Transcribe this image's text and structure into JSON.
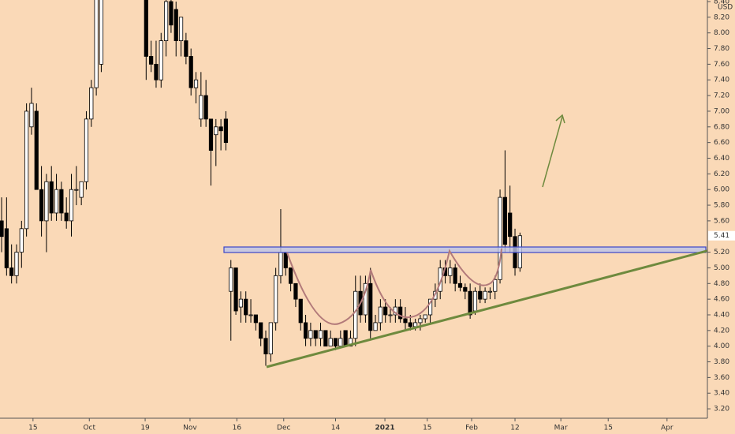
{
  "chart_data": {
    "type": "candlestick",
    "currency": "USD",
    "last_price": 5.41,
    "up_color": "#ffffff",
    "down_color": "#000000",
    "x": [
      0,
      1,
      2,
      3,
      4,
      5,
      6,
      7,
      8,
      9,
      10,
      11,
      12,
      13,
      14,
      15,
      16,
      17,
      18,
      19,
      20,
      21,
      22,
      23,
      24,
      25,
      26,
      27,
      28,
      29,
      30,
      31,
      32,
      33,
      34,
      35,
      36,
      37,
      38,
      39,
      40,
      41,
      42,
      43,
      44,
      45,
      46,
      47,
      48,
      49,
      50,
      51,
      52,
      53,
      54,
      55,
      56,
      57,
      58,
      59,
      60,
      61,
      62,
      63,
      64,
      65,
      66,
      67,
      68,
      69,
      70,
      71,
      72,
      73,
      74,
      75,
      76,
      77,
      78,
      79,
      80,
      81,
      82,
      83,
      84,
      85,
      86,
      87,
      88,
      89,
      90,
      91,
      92,
      93,
      94,
      95,
      96,
      97,
      98,
      99,
      100,
      101,
      102,
      103,
      104
    ],
    "open": [
      5.6,
      5.5,
      5.0,
      4.9,
      5.2,
      5.5,
      6.8,
      7.0,
      6.0,
      5.6,
      6.1,
      5.7,
      6.0,
      5.7,
      5.6,
      6.0,
      5.9,
      6.1,
      6.9,
      7.3,
      7.6,
      null,
      null,
      null,
      null,
      null,
      null,
      null,
      null,
      8.5,
      7.7,
      7.6,
      7.4,
      7.9,
      8.4,
      8.3,
      7.9,
      7.9,
      7.7,
      7.3,
      6.9,
      7.2,
      6.9,
      6.7,
      6.8,
      6.9,
      4.7,
      5.0,
      4.5,
      4.6,
      4.4,
      4.4,
      4.3,
      4.1,
      3.9,
      4.3,
      4.9,
      5.2,
      5.0,
      4.8,
      4.6,
      4.3,
      4.1,
      4.2,
      4.1,
      4.2,
      4.0,
      4.1,
      4.0,
      4.2,
      4.0,
      4.1,
      4.7,
      4.4,
      4.8,
      4.2,
      4.3,
      4.5,
      4.4,
      4.4,
      4.5,
      4.35,
      4.3,
      4.25,
      4.3,
      4.35,
      4.4,
      4.6,
      4.7,
      5.0,
      4.9,
      5.0,
      4.8,
      4.75,
      4.7,
      4.45,
      4.7,
      4.6,
      4.7,
      4.7,
      4.85,
      5.9,
      5.7,
      5.4,
      5.0
    ],
    "high": [
      5.9,
      5.9,
      5.3,
      5.3,
      5.6,
      7.1,
      7.3,
      7.1,
      6.3,
      6.2,
      6.3,
      6.2,
      6.1,
      5.9,
      6.2,
      6.3,
      6.1,
      7.0,
      7.4,
      8.5,
      8.5,
      null,
      null,
      null,
      null,
      null,
      null,
      null,
      null,
      8.5,
      7.9,
      7.9,
      8.0,
      8.5,
      8.5,
      8.4,
      8.2,
      8.0,
      7.8,
      7.5,
      7.5,
      7.4,
      6.9,
      6.9,
      6.9,
      7.0,
      5.1,
      5.0,
      4.7,
      4.7,
      4.6,
      4.4,
      4.3,
      4.2,
      4.3,
      5.0,
      5.75,
      5.2,
      5.0,
      4.8,
      4.6,
      4.4,
      4.3,
      4.2,
      4.3,
      4.2,
      4.2,
      4.1,
      4.2,
      4.2,
      4.2,
      4.9,
      4.9,
      4.9,
      5.0,
      4.4,
      4.6,
      4.6,
      4.5,
      4.6,
      4.6,
      4.5,
      4.4,
      4.35,
      4.4,
      4.4,
      4.6,
      4.8,
      5.1,
      5.1,
      5.1,
      5.05,
      4.9,
      4.8,
      4.8,
      4.75,
      4.8,
      4.75,
      4.75,
      4.9,
      6.0,
      6.5,
      6.05,
      5.5,
      5.45
    ],
    "low": [
      5.2,
      4.9,
      4.8,
      4.8,
      5.0,
      5.4,
      6.7,
      6.0,
      5.4,
      5.2,
      5.6,
      5.6,
      5.6,
      5.5,
      5.4,
      5.8,
      5.8,
      6.0,
      6.8,
      7.2,
      7.5,
      null,
      null,
      null,
      null,
      null,
      null,
      null,
      null,
      7.4,
      7.5,
      7.3,
      7.3,
      7.7,
      8.0,
      7.7,
      7.7,
      7.6,
      7.2,
      7.1,
      6.8,
      6.8,
      6.05,
      6.3,
      6.5,
      6.5,
      4.07,
      4.4,
      4.3,
      4.3,
      4.3,
      4.2,
      4.0,
      3.75,
      3.8,
      4.2,
      4.8,
      4.9,
      4.7,
      4.5,
      4.2,
      4.0,
      4.0,
      4.0,
      4.0,
      4.0,
      4.0,
      3.95,
      4.0,
      4.0,
      4.0,
      4.0,
      4.3,
      4.3,
      4.1,
      4.2,
      4.2,
      4.3,
      4.3,
      4.3,
      4.3,
      4.2,
      4.2,
      4.2,
      4.2,
      4.3,
      4.3,
      4.5,
      4.6,
      4.8,
      4.8,
      4.7,
      4.7,
      4.6,
      4.35,
      4.4,
      4.55,
      4.55,
      4.6,
      4.6,
      4.8,
      5.2,
      5.2,
      4.9,
      4.95
    ],
    "close": [
      5.4,
      5.0,
      4.9,
      5.2,
      5.5,
      7.0,
      7.1,
      6.0,
      5.6,
      6.1,
      5.7,
      6.0,
      5.7,
      5.6,
      6.0,
      6.0,
      6.1,
      6.9,
      7.3,
      8.5,
      8.5,
      null,
      null,
      null,
      null,
      null,
      null,
      null,
      null,
      7.7,
      7.6,
      7.4,
      7.9,
      8.4,
      8.1,
      7.9,
      8.2,
      7.7,
      7.3,
      7.4,
      7.2,
      6.9,
      6.5,
      6.8,
      6.75,
      6.6,
      5.0,
      4.45,
      4.6,
      4.4,
      4.4,
      4.3,
      4.1,
      3.9,
      4.3,
      4.9,
      5.2,
      5.0,
      4.8,
      4.6,
      4.3,
      4.1,
      4.2,
      4.1,
      4.2,
      4.0,
      4.1,
      4.0,
      4.1,
      4.0,
      4.1,
      4.7,
      4.4,
      4.8,
      4.2,
      4.3,
      4.5,
      4.4,
      4.4,
      4.5,
      4.35,
      4.3,
      4.25,
      4.3,
      4.35,
      4.4,
      4.6,
      4.7,
      5.0,
      4.9,
      5.0,
      4.8,
      4.75,
      4.7,
      4.4,
      4.7,
      4.6,
      4.7,
      4.7,
      4.85,
      5.9,
      5.3,
      5.4,
      5.0,
      5.41
    ],
    "xlim": [
      -0.32,
      141.6
    ],
    "xticks": [
      {
        "value": 6.3,
        "label": "15"
      },
      {
        "value": 17.6,
        "label": "Oct"
      },
      {
        "value": 28.8,
        "label": "19"
      },
      {
        "value": 37.8,
        "label": "Nov"
      },
      {
        "value": 47.2,
        "label": "16"
      },
      {
        "value": 56.6,
        "label": "Dec"
      },
      {
        "value": 67,
        "label": "14"
      },
      {
        "value": 76.9,
        "label": "2021"
      },
      {
        "value": 85.4,
        "label": "15"
      },
      {
        "value": 94.3,
        "label": "Feb"
      },
      {
        "value": 103,
        "label": "12"
      },
      {
        "value": 112.2,
        "label": "Mar"
      },
      {
        "value": 121.7,
        "label": "15"
      },
      {
        "value": 133.5,
        "label": "Apr"
      }
    ],
    "ylim": [
      3.08,
      8.42
    ],
    "yticks": [
      {
        "value": 3.2,
        "label": "3.20"
      },
      {
        "value": 3.4,
        "label": "3.40"
      },
      {
        "value": 3.6,
        "label": "3.60"
      },
      {
        "value": 3.8,
        "label": "3.80"
      },
      {
        "value": 4.0,
        "label": "4.00"
      },
      {
        "value": 4.2,
        "label": "4.20"
      },
      {
        "value": 4.4,
        "label": "4.40"
      },
      {
        "value": 4.6,
        "label": "4.60"
      },
      {
        "value": 4.8,
        "label": "4.80"
      },
      {
        "value": 5.0,
        "label": "5.00"
      },
      {
        "value": 5.2,
        "label": "5.20"
      },
      {
        "value": 5.6,
        "label": "5.60"
      },
      {
        "value": 5.8,
        "label": "5.80"
      },
      {
        "value": 6.0,
        "label": "6.00"
      },
      {
        "value": 6.2,
        "label": "6.20"
      },
      {
        "value": 6.4,
        "label": "6.40"
      },
      {
        "value": 6.6,
        "label": "6.60"
      },
      {
        "value": 6.8,
        "label": "6.80"
      },
      {
        "value": 7.0,
        "label": "7.00"
      },
      {
        "value": 7.2,
        "label": "7.20"
      },
      {
        "value": 7.4,
        "label": "7.40"
      },
      {
        "value": 7.6,
        "label": "7.60"
      },
      {
        "value": 7.8,
        "label": "7.80"
      },
      {
        "value": 8.0,
        "label": "8.00"
      },
      {
        "value": 8.2,
        "label": "8.20"
      },
      {
        "value": 8.4,
        "label": "8.40"
      }
    ]
  }
}
